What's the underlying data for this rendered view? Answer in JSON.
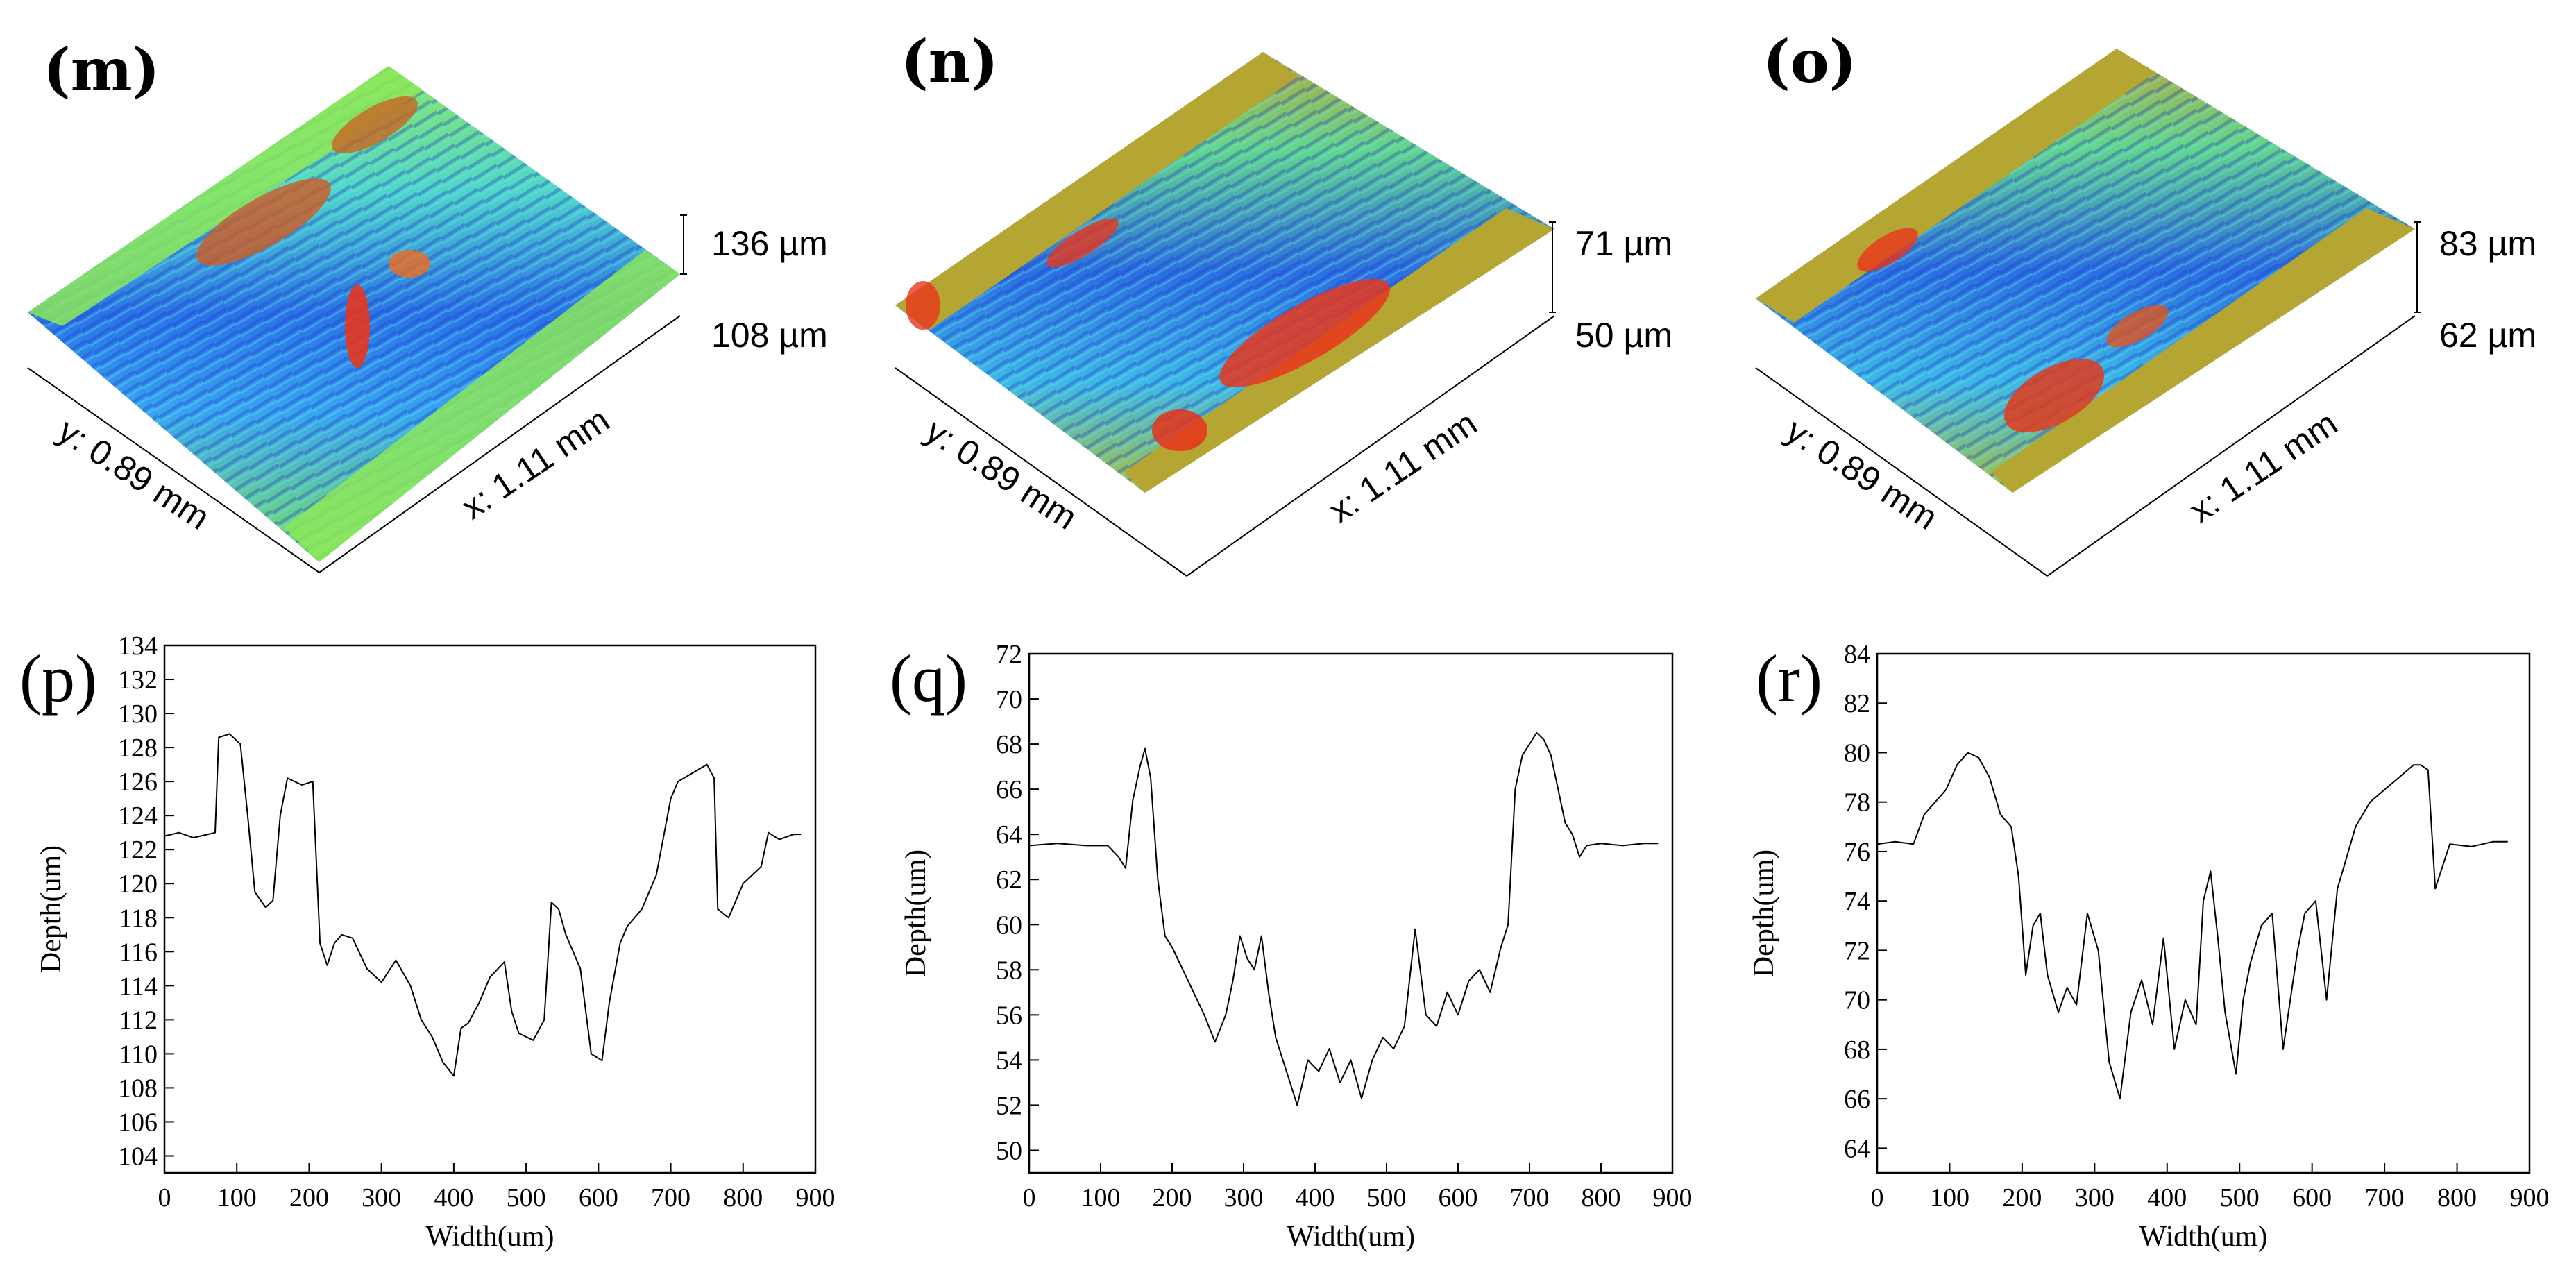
{
  "surfaces": [
    {
      "label": "(m)",
      "z_top": "136 µm",
      "z_bottom": "108 µm",
      "y_axis": "y: 0.89 mm",
      "x_axis": "x: 1.11 mm",
      "theme": "green"
    },
    {
      "label": "(n)",
      "z_top": "71 µm",
      "z_bottom": "50 µm",
      "y_axis": "y: 0.89 mm",
      "x_axis": "x: 1.11 mm",
      "theme": "olive"
    },
    {
      "label": "(o)",
      "z_top": "83 µm",
      "z_bottom": "62 µm",
      "y_axis": "y: 0.89 mm",
      "x_axis": "x: 1.11 mm",
      "theme": "olive"
    }
  ],
  "colors": {
    "line": "#000000",
    "deep": "#1b3fd6",
    "mid": "#33b6f0",
    "surface_green": "#86e85e",
    "surface_olive": "#b5a532",
    "peak": "#e8361c"
  },
  "chart_data": [
    {
      "type": "line",
      "label": "(p)",
      "xlabel": "Width(um)",
      "ylabel": "Depth(um)",
      "xlim": [
        0,
        900
      ],
      "ylim": [
        103,
        134
      ],
      "xticks": [
        0,
        100,
        200,
        300,
        400,
        500,
        600,
        700,
        800,
        900
      ],
      "yticks": [
        104,
        106,
        108,
        110,
        112,
        114,
        116,
        118,
        120,
        122,
        124,
        126,
        128,
        130,
        132,
        134
      ],
      "x": [
        0,
        20,
        40,
        60,
        70,
        75,
        90,
        105,
        115,
        125,
        140,
        150,
        160,
        170,
        180,
        190,
        205,
        215,
        225,
        235,
        245,
        260,
        280,
        300,
        320,
        340,
        355,
        370,
        385,
        400,
        410,
        420,
        435,
        450,
        470,
        480,
        490,
        500,
        510,
        525,
        535,
        545,
        555,
        565,
        575,
        590,
        605,
        615,
        630,
        640,
        660,
        680,
        700,
        710,
        730,
        750,
        760,
        765,
        780,
        800,
        815,
        825,
        835,
        850,
        870,
        880
      ],
      "y": [
        122.8,
        123.0,
        122.7,
        122.9,
        123.0,
        128.6,
        128.8,
        128.2,
        124.0,
        119.5,
        118.6,
        119.0,
        124.0,
        126.2,
        126.0,
        125.8,
        126.0,
        116.5,
        115.2,
        116.5,
        117.0,
        116.8,
        115.0,
        114.2,
        115.5,
        114.0,
        112.0,
        111.0,
        109.5,
        108.7,
        111.5,
        111.8,
        113.0,
        114.5,
        115.4,
        112.5,
        111.2,
        111.0,
        110.8,
        112.0,
        118.9,
        118.5,
        117.0,
        116.0,
        115.0,
        110.0,
        109.6,
        113.0,
        116.5,
        117.5,
        118.5,
        120.5,
        125.0,
        126.0,
        126.5,
        127.0,
        126.2,
        118.5,
        118.0,
        120.0,
        120.6,
        121.0,
        123.0,
        122.6,
        122.9,
        122.9
      ]
    },
    {
      "type": "line",
      "label": "(q)",
      "xlabel": "Width(um)",
      "ylabel": "Depth(um)",
      "xlim": [
        0,
        900
      ],
      "ylim": [
        49,
        72
      ],
      "xticks": [
        0,
        100,
        200,
        300,
        400,
        500,
        600,
        700,
        800,
        900
      ],
      "yticks": [
        50,
        52,
        54,
        56,
        58,
        60,
        62,
        64,
        66,
        68,
        70,
        72
      ],
      "x": [
        0,
        40,
        80,
        110,
        125,
        135,
        145,
        155,
        162,
        170,
        180,
        190,
        200,
        215,
        230,
        245,
        260,
        275,
        285,
        295,
        305,
        315,
        325,
        335,
        345,
        360,
        375,
        390,
        405,
        420,
        435,
        450,
        465,
        480,
        495,
        510,
        525,
        540,
        555,
        570,
        585,
        600,
        615,
        630,
        645,
        660,
        670,
        680,
        690,
        700,
        710,
        720,
        730,
        740,
        750,
        760,
        770,
        780,
        800,
        830,
        860,
        880
      ],
      "y": [
        63.5,
        63.6,
        63.5,
        63.5,
        63.0,
        62.5,
        65.5,
        67.0,
        67.8,
        66.5,
        62.0,
        59.5,
        59.0,
        58.0,
        57.0,
        56.0,
        54.8,
        56.0,
        57.5,
        59.5,
        58.5,
        58.0,
        59.5,
        57.0,
        55.0,
        53.5,
        52.0,
        54.0,
        53.5,
        54.5,
        53.0,
        54.0,
        52.3,
        54.0,
        55.0,
        54.5,
        55.5,
        59.8,
        56.0,
        55.5,
        57.0,
        56.0,
        57.5,
        58.0,
        57.0,
        59.0,
        60.0,
        66.0,
        67.5,
        68.0,
        68.5,
        68.2,
        67.5,
        66.0,
        64.5,
        64.0,
        63.0,
        63.5,
        63.6,
        63.5,
        63.6,
        63.6
      ]
    },
    {
      "type": "line",
      "label": "(r)",
      "xlabel": "Width(um)",
      "ylabel": "Depth(um)",
      "xlim": [
        0,
        900
      ],
      "ylim": [
        63,
        84
      ],
      "xticks": [
        0,
        100,
        200,
        300,
        400,
        500,
        600,
        700,
        800,
        900
      ],
      "yticks": [
        64,
        66,
        68,
        70,
        72,
        74,
        76,
        78,
        80,
        82,
        84
      ],
      "x": [
        0,
        25,
        50,
        65,
        80,
        95,
        110,
        125,
        140,
        155,
        170,
        185,
        195,
        205,
        215,
        225,
        235,
        250,
        262,
        275,
        290,
        305,
        320,
        335,
        350,
        365,
        380,
        395,
        410,
        425,
        440,
        450,
        460,
        470,
        480,
        495,
        505,
        515,
        530,
        545,
        560,
        570,
        580,
        590,
        605,
        620,
        635,
        645,
        660,
        680,
        700,
        720,
        740,
        750,
        760,
        770,
        790,
        820,
        850,
        870
      ],
      "y": [
        76.3,
        76.4,
        76.3,
        77.5,
        78.0,
        78.5,
        79.5,
        80.0,
        79.8,
        79.0,
        77.5,
        77.0,
        75.0,
        71.0,
        73.0,
        73.5,
        71.0,
        69.5,
        70.5,
        69.8,
        73.5,
        72.0,
        67.5,
        66.0,
        69.5,
        70.8,
        69.0,
        72.5,
        68.0,
        70.0,
        69.0,
        74.0,
        75.2,
        72.5,
        69.5,
        67.0,
        70.0,
        71.5,
        73.0,
        73.5,
        68.0,
        70.0,
        72.0,
        73.5,
        74.0,
        70.0,
        74.5,
        75.5,
        77.0,
        78.0,
        78.5,
        79.0,
        79.5,
        79.5,
        79.3,
        74.5,
        76.3,
        76.2,
        76.4,
        76.4
      ]
    }
  ]
}
